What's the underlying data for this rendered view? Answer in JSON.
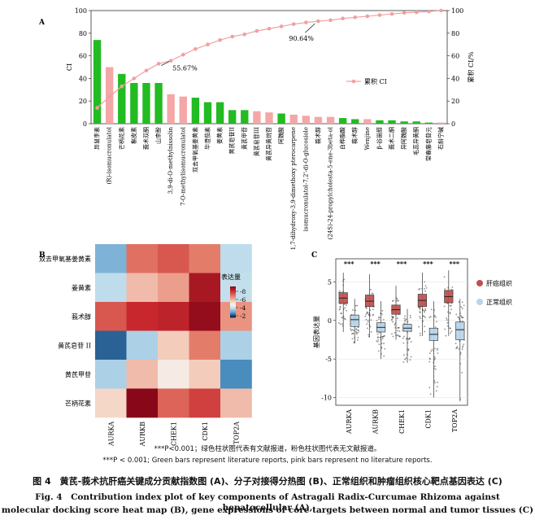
{
  "colors": {
    "literature": "#22bb22",
    "no_literature": "#f4a7a7",
    "cumulative": "#f0a0a0",
    "tumor": "#c0504d",
    "normal": "#b8d4ea"
  },
  "chart_data": [
    {
      "panel": "A",
      "type": "bar",
      "ylabel": "CI",
      "y2label": "累积 CI/%",
      "legend_label": "累积 CI",
      "legend_position": "right",
      "ylim": [
        0,
        100
      ],
      "yticks": [
        "0",
        "20",
        "40",
        "60",
        "80",
        "100"
      ],
      "categories": [
        "异鼠李素",
        "(R)-isomucronulatol",
        "芒柄花素",
        "槲皮素",
        "莪术双酮",
        "山柰酚",
        "3,9-di-O-methylnissolin",
        "7-O-methylisomucronulatol",
        "双去甲氧基姜黄素",
        "毕澄茄素",
        "姜黄素",
        "黄芪皂苷II",
        "黄芪甲苷",
        "黄芪皂苷III",
        "黄芪异黄烷苷",
        "阿魏酸",
        "1,7-dihydroxy-3,9-dimethoxy pterocarpene",
        "isomucronulatol-7,2'-di-O-glucosiole",
        "莪术醇",
        "(24S)-24-propylcholesta-5-ene-3beta-ol",
        "白桦脂酸",
        "莪术醇",
        "Wenjine",
        "β-谷甾醇",
        "莪术二酮",
        "异阿魏酸",
        "毛蕊异黄酮",
        "常春藤皂苷元",
        "石斛宁碱"
      ],
      "values": [
        74,
        50,
        44,
        36,
        36,
        36,
        26,
        24,
        23,
        19,
        19,
        12,
        12,
        11,
        10,
        9,
        8,
        7,
        6,
        6,
        5,
        4,
        4,
        3,
        3,
        2,
        2,
        1,
        1
      ],
      "literature": [
        true,
        false,
        true,
        true,
        true,
        true,
        false,
        false,
        true,
        true,
        true,
        true,
        true,
        false,
        false,
        true,
        false,
        false,
        false,
        false,
        true,
        true,
        false,
        true,
        true,
        true,
        true,
        true,
        false
      ],
      "cumulative": [
        14,
        24,
        33,
        40,
        47,
        53,
        55.67,
        61,
        66,
        70,
        74,
        77,
        79,
        82,
        84,
        86,
        88,
        89.5,
        90.64,
        91.5,
        93,
        94,
        95,
        96,
        97,
        98,
        98.5,
        99.2,
        100
      ],
      "annotations": [
        "55.67%",
        "90.64%"
      ]
    },
    {
      "panel": "B",
      "type": "heatmap",
      "legend_title": "表达量",
      "legend_ticks": [
        "-8",
        "-6",
        "-4",
        "-2"
      ],
      "rows": [
        "双去甲氧基姜黄素",
        "姜黄素",
        "莪术醇",
        "黄芪皂苷 II",
        "黄芪甲苷",
        "芒柄花素"
      ],
      "cols": [
        "AURKA",
        "AURKB",
        "CHEK1",
        "CDK1",
        "TOP2A"
      ],
      "values": [
        [
          -2.5,
          -6.8,
          -7.2,
          -6.6,
          -3.2
        ],
        [
          -3.2,
          -5.5,
          -6.0,
          -8.6,
          -3.3
        ],
        [
          -7.2,
          -8.0,
          -8.2,
          -9.0,
          -6.2
        ],
        [
          -1.5,
          -3.0,
          -5.2,
          -6.6,
          -3.0
        ],
        [
          -3.0,
          -5.5,
          -4.5,
          -5.2,
          -1.9
        ],
        [
          -5.0,
          -9.2,
          -7.0,
          -7.6,
          -5.5
        ]
      ]
    },
    {
      "panel": "C",
      "type": "box",
      "ylabel": "基因表达量",
      "ylim": [
        -11,
        8
      ],
      "yticks": [
        "5",
        "0",
        "-5",
        "-10"
      ],
      "categories": [
        "AURKA",
        "AURKB",
        "CHEK1",
        "CDK1",
        "TOP2A"
      ],
      "significance": [
        "***",
        "***",
        "***",
        "***",
        "***"
      ],
      "legend_position": "right",
      "series": [
        {
          "name": "肝癌组织",
          "q1": [
            2.2,
            1.8,
            0.8,
            1.8,
            2.3
          ],
          "median": [
            2.9,
            2.5,
            1.4,
            2.6,
            3.1
          ],
          "q3": [
            3.6,
            3.3,
            2.0,
            3.4,
            3.9
          ],
          "min": [
            -1.5,
            -2.2,
            -2.5,
            -2.0,
            -2.0
          ],
          "max": [
            6.2,
            6.0,
            4.5,
            6.2,
            6.5
          ]
        },
        {
          "name": "正常组织",
          "q1": [
            -0.8,
            -1.5,
            -1.4,
            -2.6,
            -2.5
          ],
          "median": [
            0.1,
            -0.9,
            -1.0,
            -1.8,
            -1.2
          ],
          "q3": [
            0.7,
            -0.3,
            -0.5,
            -1.0,
            -0.2
          ],
          "min": [
            -3.0,
            -5.0,
            -5.5,
            -10.0,
            -10.5
          ],
          "max": [
            2.8,
            2.5,
            1.5,
            2.5,
            2.8
          ]
        }
      ]
    }
  ],
  "footnote1": "***P<0.001；绿色柱状图代表有文献报道，粉色柱状图代表无文献报道。",
  "footnote2": "***P < 0.001; Green bars represent literature reports, pink bars represent no literature reports.",
  "caption_cn": "图 4　黄芪-莪术抗肝癌关键成分贡献指数图 (A)、分子对接得分热图 (B)、正常组织和肿瘤组织核心靶点基因表达 (C)",
  "caption_en1": "Fig. 4　Contribution index plot of key components of Astragali Radix-Curcumae Rhizoma against hepatocellular (A),",
  "caption_en2": "molecular docking score heat map (B), gene expressions of core targets between normal and tumor tissues (C)"
}
